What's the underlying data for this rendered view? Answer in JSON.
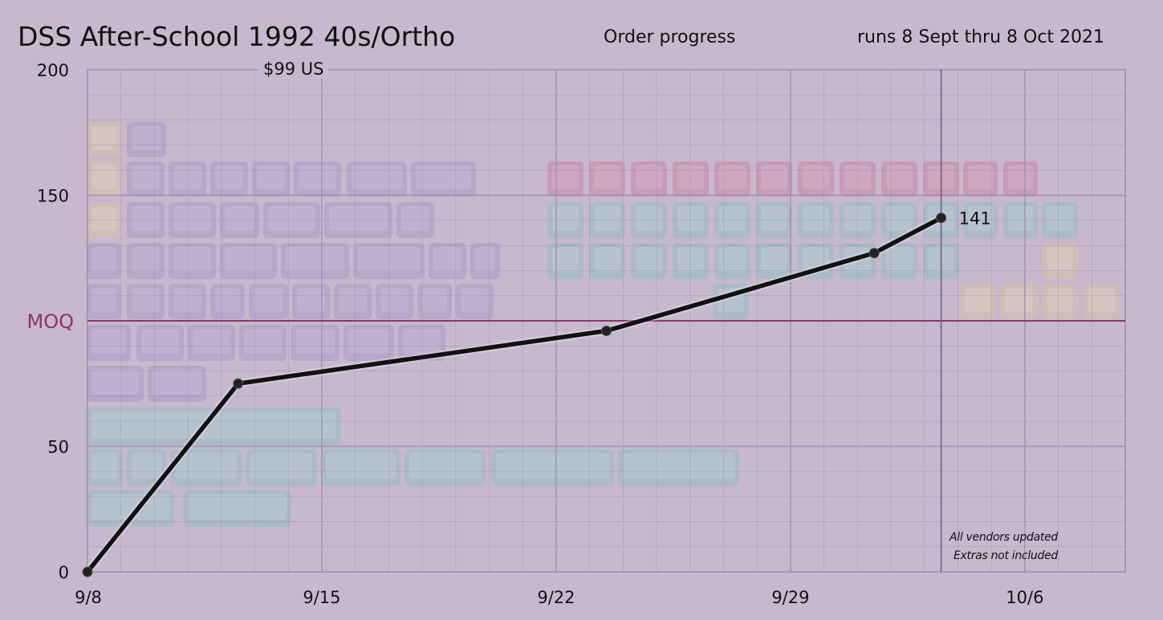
{
  "header": {
    "title": "DSS After-School 1992 40s/Ortho",
    "subtitle": "Order progress",
    "runs": "runs 8 Sept thru 8 Oct 2021"
  },
  "price_label": "$99 US",
  "notes": [
    "All vendors updated",
    "Extras not included"
  ],
  "colors": {
    "background": "#c7b8cd",
    "grid": "#9d8cb4",
    "line": "#111111",
    "moq": "#8e3466",
    "key_purple": "#a895c5",
    "key_pink": "#c9809f",
    "key_teal": "#8fbdbd",
    "key_yellow": "#d7c3a3"
  },
  "chart_data": {
    "type": "line",
    "title": "Order progress",
    "xlabel": "",
    "ylabel": "",
    "x_ticks": [
      "9/8",
      "9/15",
      "9/22",
      "9/29",
      "10/6"
    ],
    "y_ticks": [
      0,
      50,
      150,
      200
    ],
    "ylim": [
      0,
      200
    ],
    "xlim_days": [
      0,
      31
    ],
    "grid": true,
    "series": [
      {
        "x": [
          "9/8",
          "9/12",
          "9/23",
          "10/2",
          "10/3"
        ],
        "day_offsets": [
          0,
          4.5,
          15.5,
          23.5,
          25.5
        ],
        "values": [
          0,
          75,
          96,
          127,
          141
        ]
      }
    ],
    "annotations": [
      {
        "text": "141",
        "target": "last-point"
      }
    ],
    "reference_lines": [
      {
        "label": "MOQ",
        "value": 100
      }
    ]
  }
}
